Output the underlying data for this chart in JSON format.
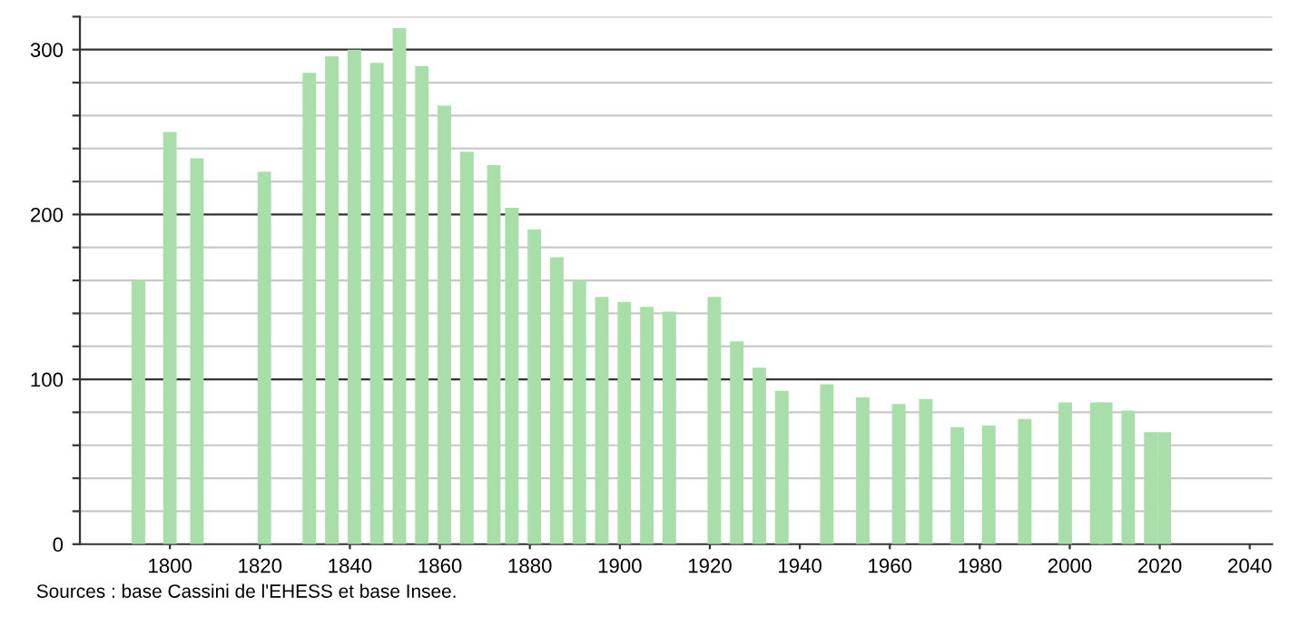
{
  "chart_data": {
    "type": "bar",
    "color": "#a8dfa8",
    "x": [
      1793,
      1800,
      1806,
      1821,
      1831,
      1836,
      1841,
      1846,
      1851,
      1856,
      1861,
      1866,
      1872,
      1876,
      1881,
      1886,
      1891,
      1896,
      1901,
      1906,
      1911,
      1921,
      1926,
      1931,
      1936,
      1946,
      1954,
      1962,
      1968,
      1975,
      1982,
      1990,
      1999,
      2006,
      2008,
      2013,
      2018,
      2021
    ],
    "values": [
      160,
      250,
      234,
      226,
      286,
      296,
      300,
      292,
      313,
      290,
      266,
      238,
      230,
      204,
      191,
      174,
      160,
      150,
      147,
      144,
      141,
      150,
      123,
      107,
      93,
      97,
      89,
      85,
      88,
      71,
      72,
      76,
      86,
      86,
      86,
      81,
      68,
      68
    ],
    "xlim": [
      1780,
      2045
    ],
    "xticks": [
      1800,
      1820,
      1840,
      1860,
      1880,
      1900,
      1920,
      1940,
      1960,
      1980,
      2000,
      2020,
      2040
    ],
    "ylim": [
      0,
      320
    ],
    "yticks": [
      0,
      {
        "value": 20,
        "label": null
      },
      {
        "value": 40,
        "label": null
      },
      {
        "value": 60,
        "label": null
      },
      {
        "value": 80,
        "label": null
      },
      100,
      {
        "value": 120,
        "label": null
      },
      {
        "value": 140,
        "label": null
      },
      {
        "value": 160,
        "label": null
      },
      {
        "value": 180,
        "label": null
      },
      200,
      {
        "value": 220,
        "label": null
      },
      {
        "value": 240,
        "label": null
      },
      {
        "value": 260,
        "label": null
      },
      {
        "value": 280,
        "label": null
      },
      300,
      {
        "value": 320,
        "label": null
      }
    ],
    "grid": "y",
    "annotations": [
      "Sources : base Cassini de l'EHESS et base Insee."
    ]
  }
}
